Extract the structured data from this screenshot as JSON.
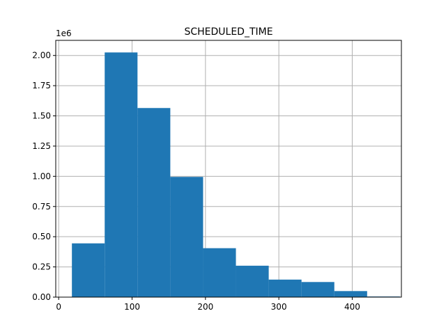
{
  "chart_data": {
    "type": "bar",
    "title": "SCHEDULED_TIME",
    "xlabel": "",
    "ylabel": "",
    "y_offset_label": "1e6",
    "grid": true,
    "legend": false,
    "bar_color": "#1f77b4",
    "grid_color": "#b0b0b0",
    "xlim": [
      -4,
      467
    ],
    "ylim": [
      0,
      2.125
    ],
    "xticks": [
      0,
      100,
      200,
      300,
      400
    ],
    "xtick_labels": [
      "0",
      "100",
      "200",
      "300",
      "400"
    ],
    "yticks": [
      0,
      0.25,
      0.5,
      0.75,
      1.0,
      1.25,
      1.5,
      1.75,
      2.0
    ],
    "ytick_labels": [
      "0.00",
      "0.25",
      "0.50",
      "0.75",
      "1.00",
      "1.25",
      "1.50",
      "1.75",
      "2.00"
    ],
    "bin_edges": [
      18,
      62.7,
      107.4,
      152.1,
      196.8,
      241.5,
      286.2,
      330.9,
      375.6,
      420.3,
      465
    ],
    "values": [
      0.445,
      2.025,
      1.565,
      0.995,
      0.405,
      0.26,
      0.145,
      0.125,
      0.05,
      0.005
    ]
  }
}
